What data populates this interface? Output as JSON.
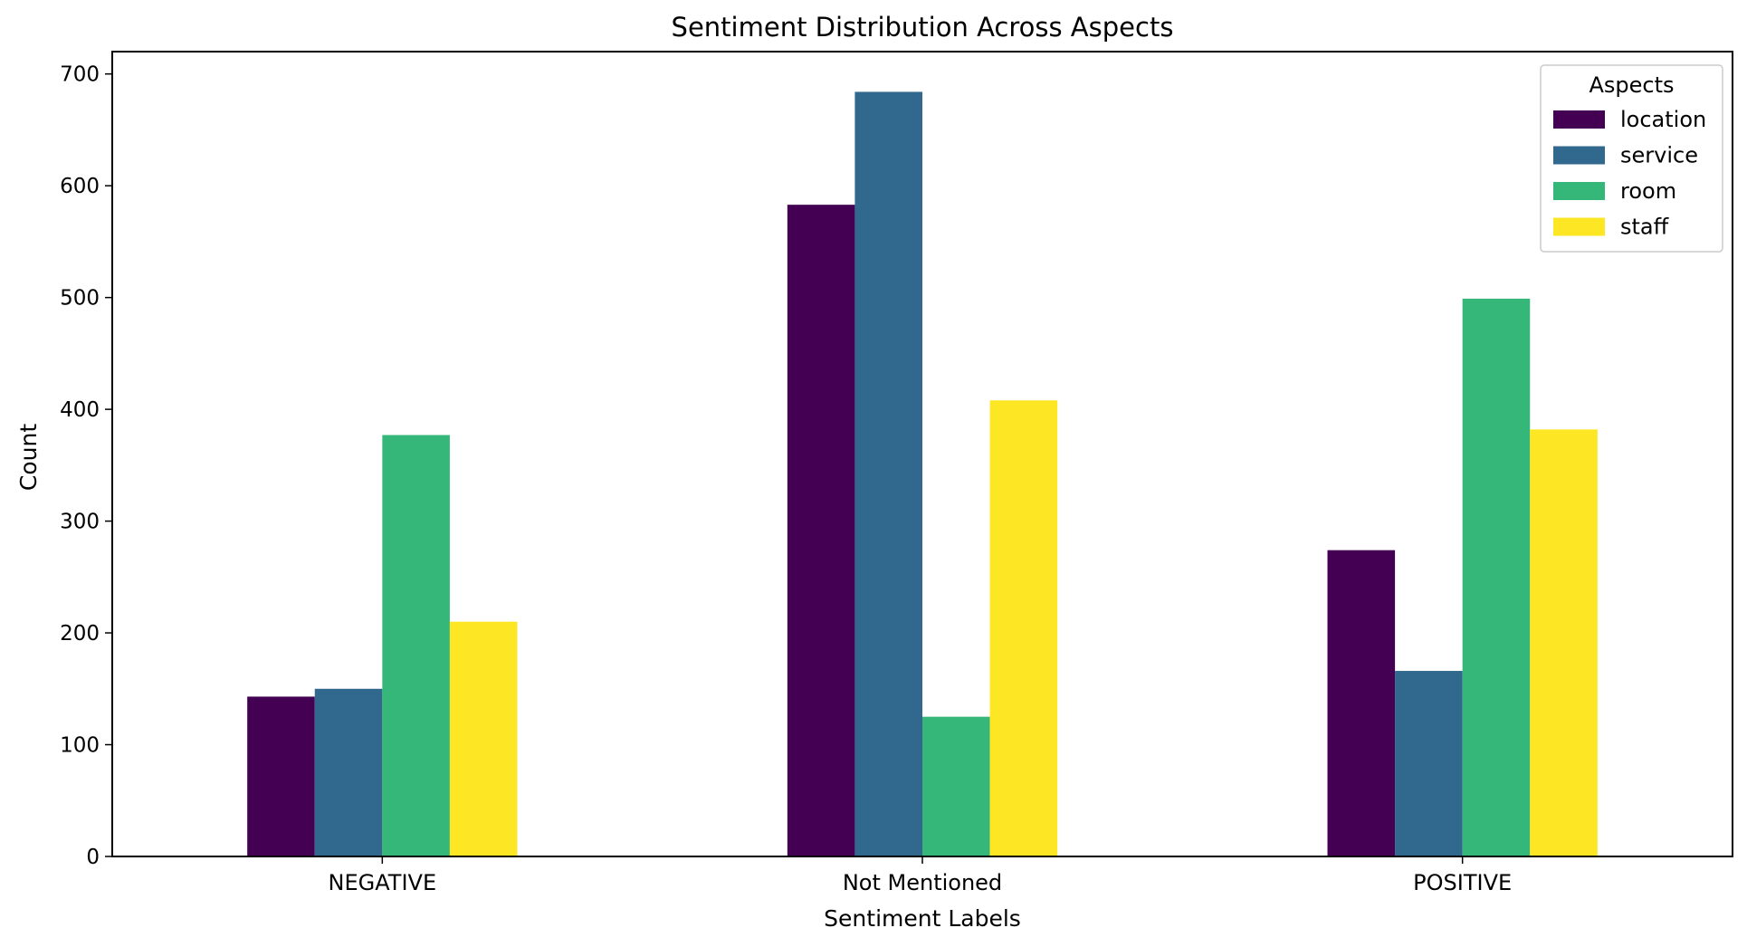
{
  "chart_data": {
    "type": "bar",
    "title": "Sentiment Distribution Across Aspects",
    "xlabel": "Sentiment Labels",
    "ylabel": "Count",
    "categories": [
      "NEGATIVE",
      "Not Mentioned",
      "POSITIVE"
    ],
    "ylim": [
      0,
      720
    ],
    "yticks": [
      0,
      100,
      200,
      300,
      400,
      500,
      600,
      700
    ],
    "grid": false,
    "legend": {
      "title": "Aspects",
      "placement": "top-right"
    },
    "series": [
      {
        "name": "location",
        "color": "#440154",
        "values": [
          143,
          583,
          274
        ]
      },
      {
        "name": "service",
        "color": "#31688e",
        "values": [
          150,
          684,
          166
        ]
      },
      {
        "name": "room",
        "color": "#35b779",
        "values": [
          377,
          125,
          499
        ]
      },
      {
        "name": "staff",
        "color": "#fde725",
        "values": [
          210,
          408,
          382
        ]
      }
    ]
  }
}
